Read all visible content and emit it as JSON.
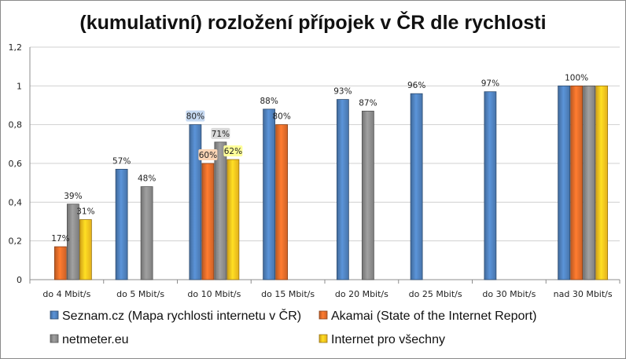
{
  "chart_data": {
    "type": "bar",
    "title": "(kumulativní) rozložení přípojek v ČR dle rychlosti",
    "xlabel": "",
    "ylabel": "",
    "ylim": [
      0,
      1.2
    ],
    "yticks": [
      "0",
      "0,2",
      "0,4",
      "0,6",
      "0,8",
      "1",
      "1,2"
    ],
    "ytick_values": [
      0,
      0.2,
      0.4,
      0.6,
      0.8,
      1.0,
      1.2
    ],
    "grid": true,
    "legend_position": "bottom",
    "categories": [
      "do 4 Mbit/s",
      "do 5 Mbit/s",
      "do 10 Mbit/s",
      "do 15 Mbit/s",
      "do 20 Mbit/s",
      "do 25 Mbit/s",
      "do 30 Mbit/s",
      "nad 30 Mbit/s"
    ],
    "series": [
      {
        "name": "Seznam.cz (Mapa rychlosti internetu v ČR)",
        "color": "#4f81bd",
        "values": [
          null,
          0.57,
          0.8,
          0.88,
          0.93,
          0.96,
          0.97,
          1.0
        ],
        "labels": [
          "",
          "57%",
          "80%",
          "88%",
          "93%",
          "96%",
          "97%",
          ""
        ]
      },
      {
        "name": "Akamai (State of the Internet Report)",
        "color": "#e46c2a",
        "values": [
          0.17,
          null,
          0.6,
          0.8,
          null,
          null,
          null,
          1.0
        ],
        "labels": [
          "17%",
          "",
          "60%",
          "80%",
          "",
          "",
          "",
          "100%"
        ]
      },
      {
        "name": "netmeter.eu",
        "color": "#8c8c8c",
        "values": [
          0.39,
          0.48,
          0.71,
          null,
          0.87,
          null,
          null,
          1.0
        ],
        "labels": [
          "39%",
          "48%",
          "71%",
          "",
          "87%",
          "",
          "",
          ""
        ]
      },
      {
        "name": "Internet pro všechny",
        "color": "#fcc21e",
        "values": [
          0.31,
          null,
          0.62,
          null,
          null,
          null,
          null,
          1.0
        ],
        "labels": [
          "31%",
          "",
          "62%",
          "",
          "",
          "",
          "",
          ""
        ]
      }
    ],
    "highlighted_labels": [
      {
        "category": "do 10 Mbit/s",
        "series": "Seznam.cz (Mapa rychlosti internetu v ČR)",
        "color": "#c6d9f1"
      },
      {
        "category": "do 10 Mbit/s",
        "series": "Akamai (State of the Internet Report)",
        "color": "#fbd5b5"
      },
      {
        "category": "do 10 Mbit/s",
        "series": "netmeter.eu",
        "color": "#d9d9d9"
      },
      {
        "category": "do 10 Mbit/s",
        "series": "Internet pro všechny",
        "color": "#ffff99"
      }
    ]
  }
}
